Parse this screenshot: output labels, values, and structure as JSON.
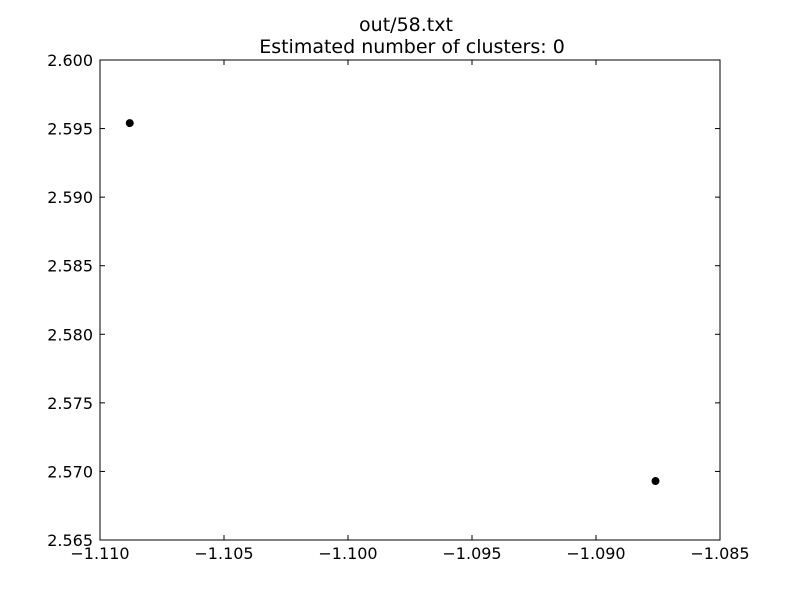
{
  "chart_data": {
    "type": "scatter",
    "title": "out/58.txt",
    "subtitle": "Estimated number of clusters: 0",
    "xlabel": "",
    "ylabel": "",
    "xlim": [
      -1.11,
      -1.085
    ],
    "ylim": [
      2.565,
      2.6
    ],
    "x_ticks": [
      -1.11,
      -1.105,
      -1.1,
      -1.095,
      -1.09,
      -1.085
    ],
    "x_tick_labels": [
      "−1.110",
      "−1.105",
      "−1.100",
      "−1.095",
      "−1.090",
      "−1.085"
    ],
    "y_ticks": [
      2.565,
      2.57,
      2.575,
      2.58,
      2.585,
      2.59,
      2.595,
      2.6
    ],
    "y_tick_labels": [
      "2.565",
      "2.570",
      "2.575",
      "2.580",
      "2.585",
      "2.590",
      "2.595",
      "2.600"
    ],
    "grid": false,
    "legend": "none",
    "marker_color": "#000000",
    "points": [
      {
        "x": -1.1088,
        "y": 2.5954
      },
      {
        "x": -1.0876,
        "y": 2.5693
      }
    ]
  }
}
